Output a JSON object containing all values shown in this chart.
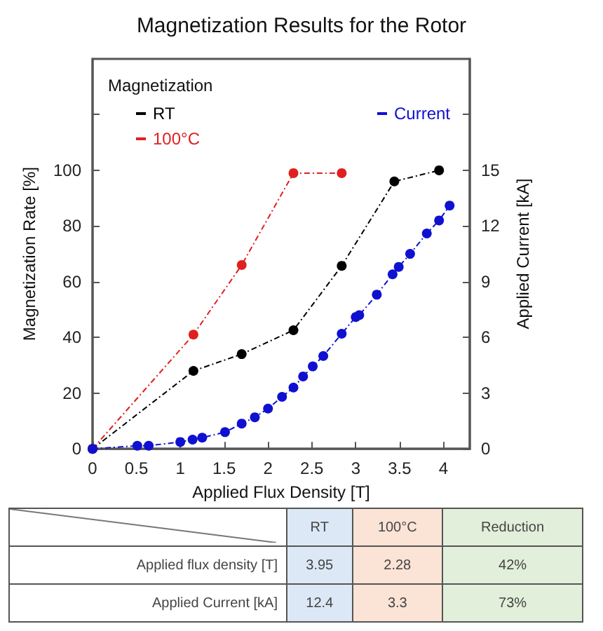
{
  "chart_data": [
    {
      "type": "line",
      "title": "Magnetization Results for the Rotor",
      "xlabel": "Applied Flux Density [T]",
      "ylabel": "Magnetization Rate [%]",
      "y2label": "Applied Current [kA]",
      "legend_title": "Magnetization",
      "legend": "top",
      "marker": "circle",
      "line_style": "dashed",
      "grid": false,
      "xlim": [
        0,
        4.3
      ],
      "xticks": [
        0,
        0.5,
        1,
        1.5,
        2,
        2.5,
        3,
        3.5,
        4
      ],
      "ylim": [
        0,
        140
      ],
      "yticks": [
        0,
        20,
        40,
        60,
        80,
        100,
        {
          "value": 120,
          "label": null
        }
      ],
      "y2lim": [
        0,
        21
      ],
      "y2ticks": [
        0,
        3,
        6,
        9,
        12,
        15,
        {
          "value": 18,
          "label": null
        }
      ],
      "series": [
        {
          "name": "RT",
          "color": "#000000",
          "x": [
            0,
            1.15,
            1.7,
            2.29,
            2.84,
            3.44,
            3.95
          ],
          "values": [
            0,
            28,
            34,
            42.6,
            65.7,
            96,
            100
          ]
        },
        {
          "name": "100°C",
          "color": "#e02020",
          "x": [
            0,
            1.15,
            1.7,
            2.29,
            2.84
          ],
          "values": [
            0,
            41,
            66,
            99,
            99
          ]
        },
        {
          "name": "Current",
          "color": "#1010d0",
          "axis": "y2",
          "x": [
            0,
            0.51,
            0.64,
            1.0,
            1.14,
            1.25,
            1.51,
            1.7,
            1.85,
            2.0,
            2.16,
            2.29,
            2.4,
            2.51,
            2.63,
            2.84,
            3.0,
            3.04,
            3.24,
            3.42,
            3.49,
            3.62,
            3.81,
            3.95,
            4.07
          ],
          "values": [
            0,
            0.17,
            0.17,
            0.37,
            0.5,
            0.6,
            0.9,
            1.36,
            1.7,
            2.17,
            2.8,
            3.3,
            3.9,
            4.44,
            5.0,
            6.2,
            7.1,
            7.2,
            8.3,
            9.4,
            9.8,
            10.5,
            11.6,
            12.3,
            13.1
          ]
        }
      ]
    },
    {
      "type": "other",
      "colors": [
        "#dce8f5",
        "#fbe3d6",
        "#e2efda"
      ],
      "annotations": [
        "RT",
        "100°C",
        "Reduction",
        "Applied flux density [T]",
        "3.95",
        "2.28",
        "42%",
        "Applied Current [kA]",
        "12.4",
        "3.3",
        "73%"
      ]
    }
  ]
}
